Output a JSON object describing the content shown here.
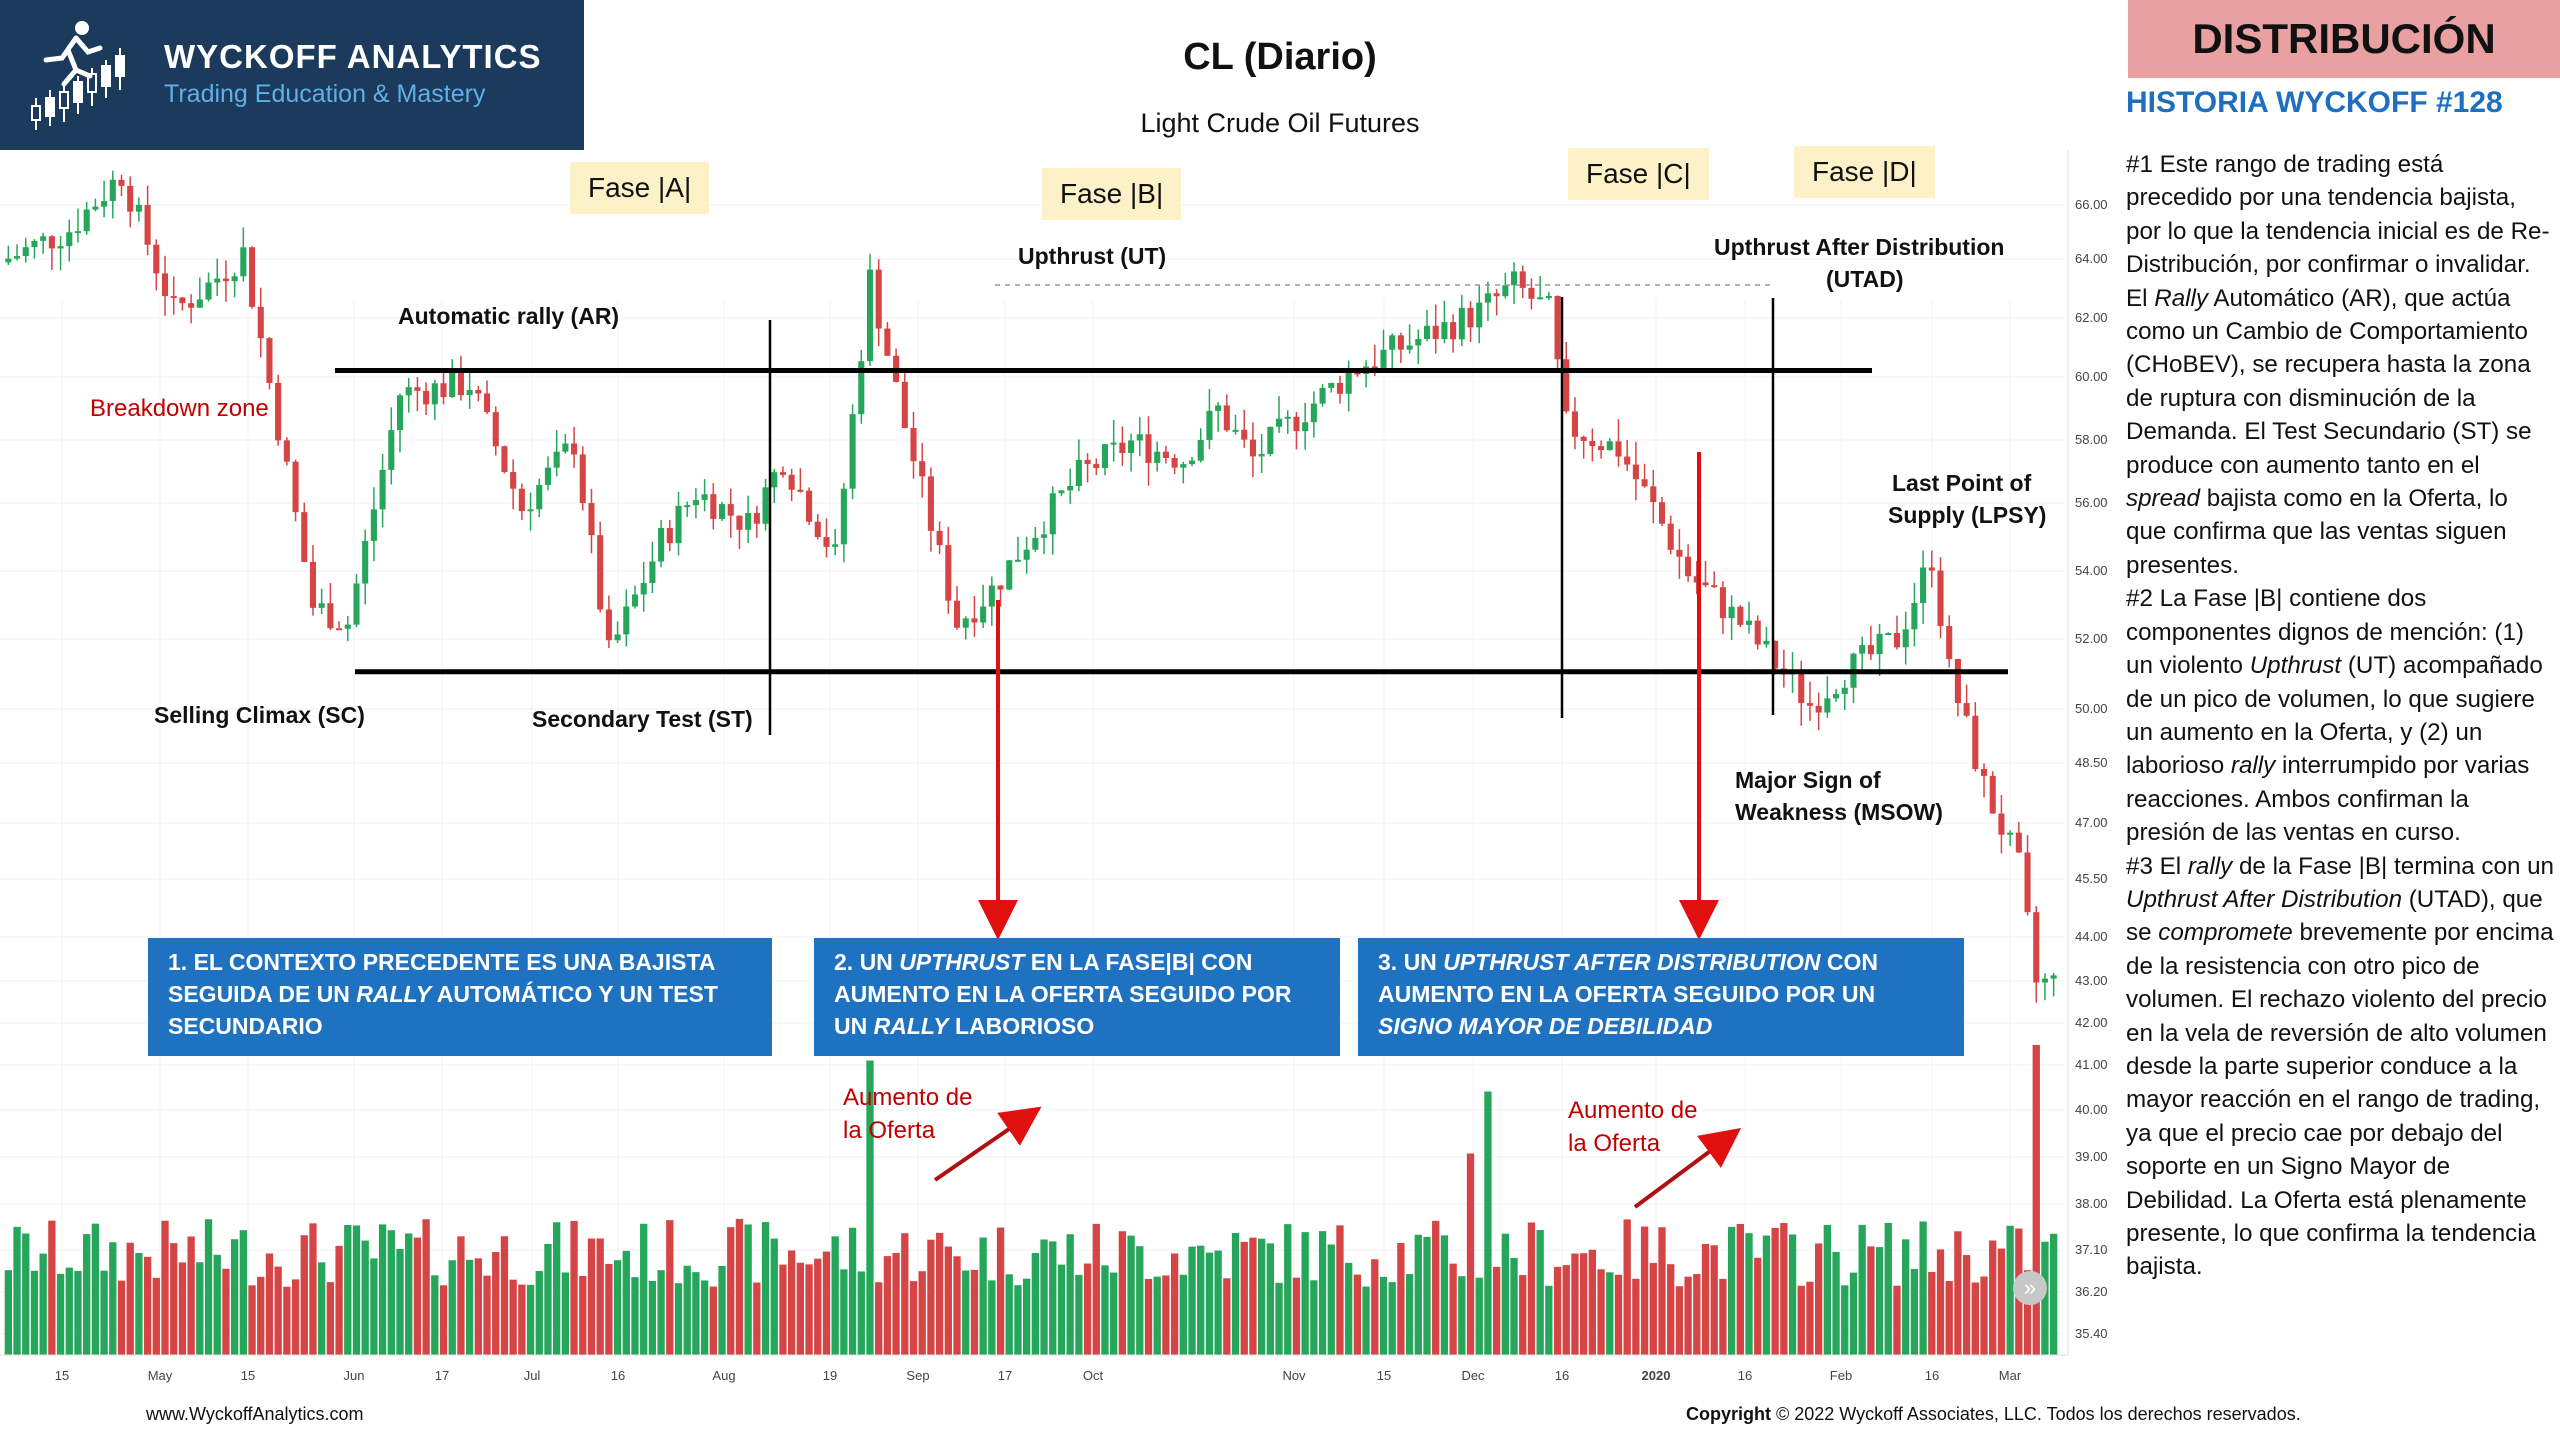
{
  "logo": {
    "brand": "WYCKOFF ANALYTICS",
    "tagline": "Trading Education & Mastery"
  },
  "title": "CL (Diario)",
  "subtitle": "Light Crude Oil Futures",
  "badge": "DISTRIBUCIÓN",
  "story_title": "HISTORIA WYCKOFF #128",
  "story_html": "#1 Este rango de trading está precedido por una tendencia bajista, por lo que la tendencia inicial es de Re-Distribución, por confirmar o invalidar. El <i>Rally</i> Automático (AR), que actúa como un Cambio de Comportamiento (CHoBEV), se recupera hasta la zona de ruptura con disminución de la Demanda. El Test Secundario (ST) se produce con aumento tanto en el <i>spread</i> bajista como en la Oferta, lo que confirma que las ventas siguen presentes.<br>#2 La Fase |B| contiene dos componentes dignos de mención: (1) un violento <i>Upthrust</i> (UT) acompañado de un pico de volumen, lo que sugiere un aumento en la Oferta, y (2) un laborioso <i>rally</i> interrumpido por varias reacciones. Ambos confirman la presión de las ventas en curso.<br>#3 El <i>rally</i> de la Fase |B| termina con un <i>Upthrust After Distribution</i> (UTAD), que se <i>compromete</i> brevemente por encima de la resistencia con otro pico de volumen. El rechazo violento del precio en la vela de reversión de alto volumen desde la parte superior conduce a la mayor reacción en el rango de trading, ya que el precio cae por debajo del soporte en un Signo Mayor de Debilidad. La Oferta está plenamente presente, lo que confirma la tendencia bajista.",
  "phases": [
    "Fase |A|",
    "Fase |B|",
    "Fase |C|",
    "Fase |D|"
  ],
  "labels": {
    "breakdown": "Breakdown zone",
    "ar": "Automatic rally (AR)",
    "sc": "Selling Climax (SC)",
    "st": "Secondary Test (ST)",
    "ut": "Upthrust (UT)",
    "utad1": "Upthrust After Distribution",
    "utad2": "(UTAD)",
    "lpsy1": "Last Point of",
    "lpsy2": "Supply (LPSY)",
    "msow1": "Major Sign of",
    "msow2": "Weakness (MSOW)",
    "supply1a": "Aumento de",
    "supply1b": "la Oferta",
    "supply2a": "Aumento de",
    "supply2b": "la Oferta"
  },
  "boxes": [
    "1. EL CONTEXTO PRECEDENTE ES UNA BAJISTA SEGUIDA DE UN <i>RALLY</i> AUTOMÁTICO Y UN TEST SECUNDARIO",
    "2. UN <i>UPTHRUST</i> EN LA FASE|B| CON AUMENTO EN LA OFERTA SEGUIDO POR UN <i>RALLY</i> LABORIOSO",
    "3. UN <i>UPTHRUST AFTER DISTRIBUTION</i> CON AUMENTO EN LA OFERTA SEGUIDO POR UN <i>SIGNO MAYOR DE DEBILIDAD</i>"
  ],
  "footer_left": "www.WyckoffAnalytics.com",
  "footer_right_bold": "Copyright",
  "footer_right": " © 2022 Wyckoff Associates,  LLC. Todos  los derechos  reservados.",
  "scroll_icon": "»",
  "chart_data": {
    "type": "candlestick",
    "y_ticks": [
      "66.00",
      "64.00",
      "62.00",
      "60.00",
      "58.00",
      "56.00",
      "54.00",
      "52.00",
      "50.00",
      "48.50",
      "47.00",
      "45.50",
      "44.00",
      "43.00",
      "42.00",
      "41.00",
      "40.00",
      "39.00",
      "38.00",
      "37.10",
      "36.20",
      "35.40"
    ],
    "x_ticks": [
      "15",
      "May",
      "15",
      "Jun",
      "17",
      "Jul",
      "16",
      "Aug",
      "19",
      "Sep",
      "17",
      "Oct",
      "Nov",
      "15",
      "Dec",
      "16",
      "2020",
      "16",
      "Feb",
      "16",
      "Mar"
    ],
    "resistance": 60.2,
    "support": 51.0,
    "colors": {
      "up": "#26a65b",
      "down": "#d64545"
    },
    "price_path": [
      [
        0,
        63.5
      ],
      [
        8,
        64.5
      ],
      [
        14,
        66.2
      ],
      [
        20,
        62
      ],
      [
        24,
        62.8
      ],
      [
        28,
        63.8
      ],
      [
        32,
        58.5
      ],
      [
        36,
        53
      ],
      [
        40,
        52.5
      ],
      [
        46,
        59.5
      ],
      [
        54,
        59.8
      ],
      [
        60,
        56
      ],
      [
        66,
        58
      ],
      [
        70,
        51.5
      ],
      [
        76,
        55
      ],
      [
        80,
        56.5
      ],
      [
        86,
        55.5
      ],
      [
        90,
        57.5
      ],
      [
        96,
        54.5
      ],
      [
        100,
        63
      ],
      [
        104,
        58.5
      ],
      [
        110,
        52.5
      ],
      [
        114,
        53.5
      ],
      [
        118,
        55
      ],
      [
        124,
        57
      ],
      [
        130,
        58
      ],
      [
        136,
        57.5
      ],
      [
        140,
        59
      ],
      [
        144,
        57.5
      ],
      [
        150,
        59
      ],
      [
        156,
        60.3
      ],
      [
        160,
        60.8
      ],
      [
        166,
        61.5
      ],
      [
        170,
        62
      ],
      [
        174,
        62.8
      ],
      [
        178,
        62
      ],
      [
        180,
        58.5
      ],
      [
        186,
        57.8
      ],
      [
        190,
        56
      ],
      [
        194,
        54
      ],
      [
        200,
        52.5
      ],
      [
        208,
        50
      ],
      [
        212,
        51
      ],
      [
        218,
        52
      ],
      [
        222,
        54.5
      ],
      [
        224,
        51
      ],
      [
        228,
        47.5
      ],
      [
        232,
        45
      ],
      [
        234,
        41.5
      ]
    ],
    "volume_spikes": [
      [
        99,
        0.95
      ],
      [
        168,
        0.65
      ],
      [
        170,
        0.85
      ],
      [
        233,
        1.0
      ]
    ]
  }
}
